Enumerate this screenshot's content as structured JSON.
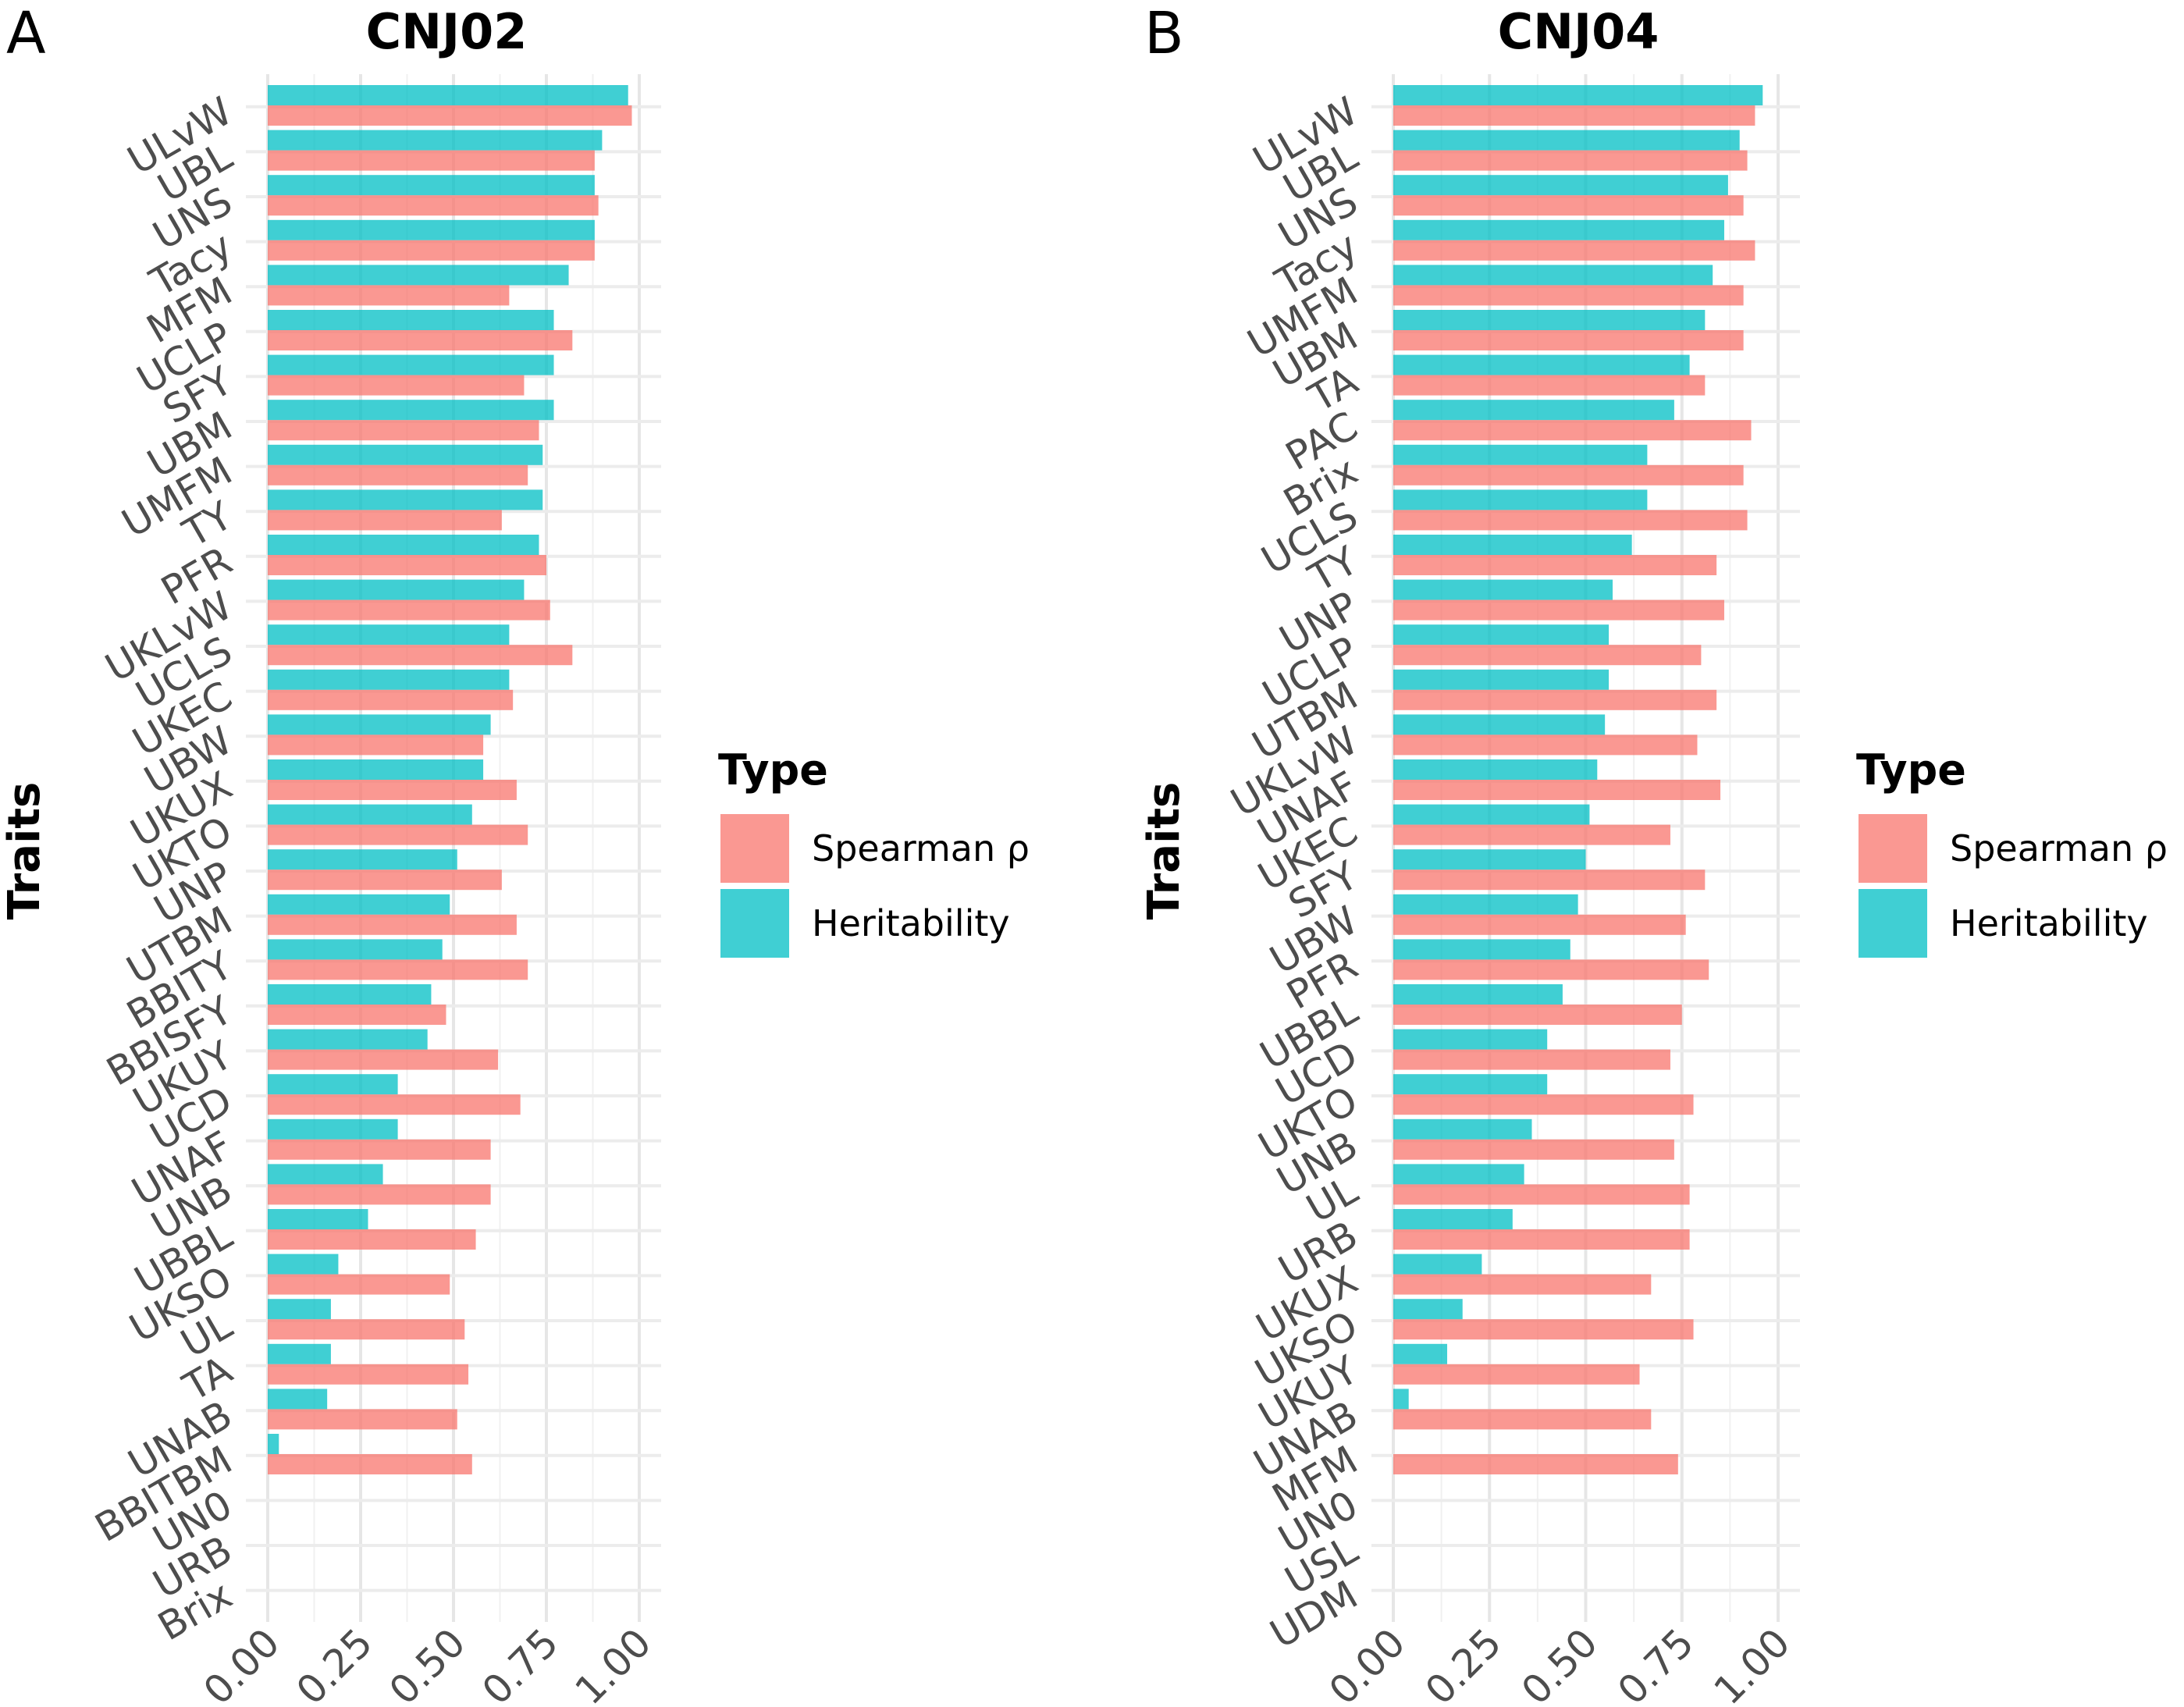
{
  "chart_data": [
    {
      "type": "bar",
      "orientation": "horizontal",
      "panel_label": "A",
      "title": "CNJ02",
      "ylabel": "Traits",
      "xlabel": "",
      "xlim": [
        0,
        1
      ],
      "x_ticks": [
        "0.00",
        "0.25",
        "0.50",
        "0.75",
        "1.00"
      ],
      "grid": true,
      "categories": [
        "ULvW",
        "UBL",
        "UNS",
        "Tacy",
        "MFM",
        "UCLP",
        "SFY",
        "UBM",
        "UMFM",
        "TY",
        "PFR",
        "UKLvW",
        "UCLS",
        "UKEC",
        "UBW",
        "UKUX",
        "UKTO",
        "UNP",
        "UTBM",
        "BBITY",
        "BBISFY",
        "UKUY",
        "UCD",
        "UNAF",
        "UNB",
        "UBBL",
        "UKSO",
        "UL",
        "TA",
        "UNAB",
        "BBITBM",
        "UN0",
        "URB",
        "Brix"
      ],
      "series": [
        {
          "name": "Heritability",
          "color": "#00BFC4",
          "values": [
            0.97,
            0.9,
            0.88,
            0.88,
            0.81,
            0.77,
            0.77,
            0.77,
            0.74,
            0.74,
            0.73,
            0.69,
            0.65,
            0.65,
            0.6,
            0.58,
            0.55,
            0.51,
            0.49,
            0.47,
            0.44,
            0.43,
            0.35,
            0.35,
            0.31,
            0.27,
            0.19,
            0.17,
            0.17,
            0.16,
            0.03,
            null,
            null,
            null
          ]
        },
        {
          "name": "Spearman ρ",
          "color": "#F8766D",
          "values": [
            0.98,
            0.88,
            0.89,
            0.88,
            0.65,
            0.82,
            0.69,
            0.73,
            0.7,
            0.63,
            0.75,
            0.76,
            0.82,
            0.66,
            0.58,
            0.67,
            0.7,
            0.63,
            0.67,
            0.7,
            0.48,
            0.62,
            0.68,
            0.6,
            0.6,
            0.56,
            0.49,
            0.53,
            0.54,
            0.51,
            0.55,
            null,
            null,
            null
          ]
        }
      ]
    },
    {
      "type": "bar",
      "orientation": "horizontal",
      "panel_label": "B",
      "title": "CNJ04",
      "ylabel": "Traits",
      "xlabel": "",
      "xlim": [
        0,
        1
      ],
      "x_ticks": [
        "0.00",
        "0.25",
        "0.50",
        "0.75",
        "1.00"
      ],
      "grid": true,
      "categories": [
        "ULvW",
        "UBL",
        "UNS",
        "Tacy",
        "UMFM",
        "UBM",
        "TA",
        "PAC",
        "Brix",
        "UCLS",
        "TY",
        "UNP",
        "UCLP",
        "UTBM",
        "UKLvW",
        "UNAF",
        "UKEC",
        "SFY",
        "UBW",
        "PFR",
        "UBBL",
        "UCD",
        "UKTO",
        "UNB",
        "UL",
        "URB",
        "UKUX",
        "UKSO",
        "UKUY",
        "UNAB",
        "MFM",
        "UN0",
        "USL",
        "UDM"
      ],
      "series": [
        {
          "name": "Heritability",
          "color": "#00BFC4",
          "values": [
            0.96,
            0.9,
            0.87,
            0.86,
            0.83,
            0.81,
            0.77,
            0.73,
            0.66,
            0.66,
            0.62,
            0.57,
            0.56,
            0.56,
            0.55,
            0.53,
            0.51,
            0.5,
            0.48,
            0.46,
            0.44,
            0.4,
            0.4,
            0.36,
            0.34,
            0.31,
            0.23,
            0.18,
            0.14,
            0.04,
            null,
            null,
            null,
            null
          ]
        },
        {
          "name": "Spearman ρ",
          "color": "#F8766D",
          "values": [
            0.94,
            0.92,
            0.91,
            0.94,
            0.91,
            0.91,
            0.81,
            0.93,
            0.91,
            0.92,
            0.84,
            0.86,
            0.8,
            0.84,
            0.79,
            0.85,
            0.72,
            0.81,
            0.76,
            0.82,
            0.75,
            0.72,
            0.78,
            0.73,
            0.77,
            0.77,
            0.67,
            0.78,
            0.64,
            0.67,
            0.74,
            null,
            null,
            null
          ]
        }
      ]
    }
  ],
  "legend": {
    "title": "Type",
    "items": [
      {
        "label": "Spearman ρ",
        "color": "#F8766D"
      },
      {
        "label": "Heritability",
        "color": "#00BFC4"
      }
    ]
  }
}
